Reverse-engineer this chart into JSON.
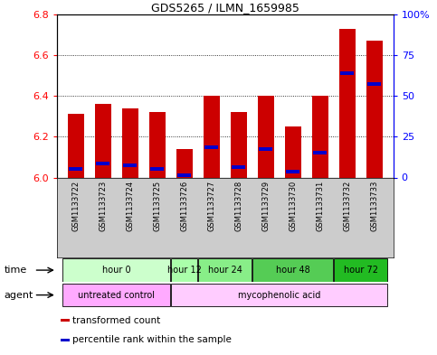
{
  "title": "GDS5265 / ILMN_1659985",
  "samples": [
    "GSM1133722",
    "GSM1133723",
    "GSM1133724",
    "GSM1133725",
    "GSM1133726",
    "GSM1133727",
    "GSM1133728",
    "GSM1133729",
    "GSM1133730",
    "GSM1133731",
    "GSM1133732",
    "GSM1133733"
  ],
  "transformed_counts": [
    6.31,
    6.36,
    6.34,
    6.32,
    6.14,
    6.4,
    6.32,
    6.4,
    6.25,
    6.4,
    6.73,
    6.67
  ],
  "percentile_values": [
    6.04,
    6.07,
    6.06,
    6.04,
    6.01,
    6.15,
    6.05,
    6.14,
    6.03,
    6.12,
    6.51,
    6.46
  ],
  "ylim_left": [
    6.0,
    6.8
  ],
  "ylim_right": [
    0,
    100
  ],
  "yticks_left": [
    6.0,
    6.2,
    6.4,
    6.6,
    6.8
  ],
  "yticks_right": [
    0,
    25,
    50,
    75,
    100
  ],
  "ytick_labels_right": [
    "0",
    "25",
    "50",
    "75",
    "100%"
  ],
  "time_groups": [
    {
      "label": "hour 0",
      "start": 0,
      "end": 3,
      "color": "#ccffcc"
    },
    {
      "label": "hour 12",
      "start": 4,
      "end": 4,
      "color": "#aaffaa"
    },
    {
      "label": "hour 24",
      "start": 5,
      "end": 6,
      "color": "#88ee88"
    },
    {
      "label": "hour 48",
      "start": 7,
      "end": 9,
      "color": "#55cc55"
    },
    {
      "label": "hour 72",
      "start": 10,
      "end": 11,
      "color": "#22bb22"
    }
  ],
  "agent_groups": [
    {
      "label": "untreated control",
      "start": 0,
      "end": 3,
      "color": "#ffaaff"
    },
    {
      "label": "mycophenolic acid",
      "start": 4,
      "end": 11,
      "color": "#ffccff"
    }
  ],
  "bar_color": "#cc0000",
  "percentile_color": "#0000cc",
  "bar_width": 0.6,
  "background_color": "#ffffff",
  "plot_bg_color": "#ffffff",
  "grid_color": "#000000",
  "sample_bg_color": "#cccccc",
  "legend_items": [
    {
      "label": "transformed count",
      "color": "#cc0000"
    },
    {
      "label": "percentile rank within the sample",
      "color": "#0000cc"
    }
  ]
}
